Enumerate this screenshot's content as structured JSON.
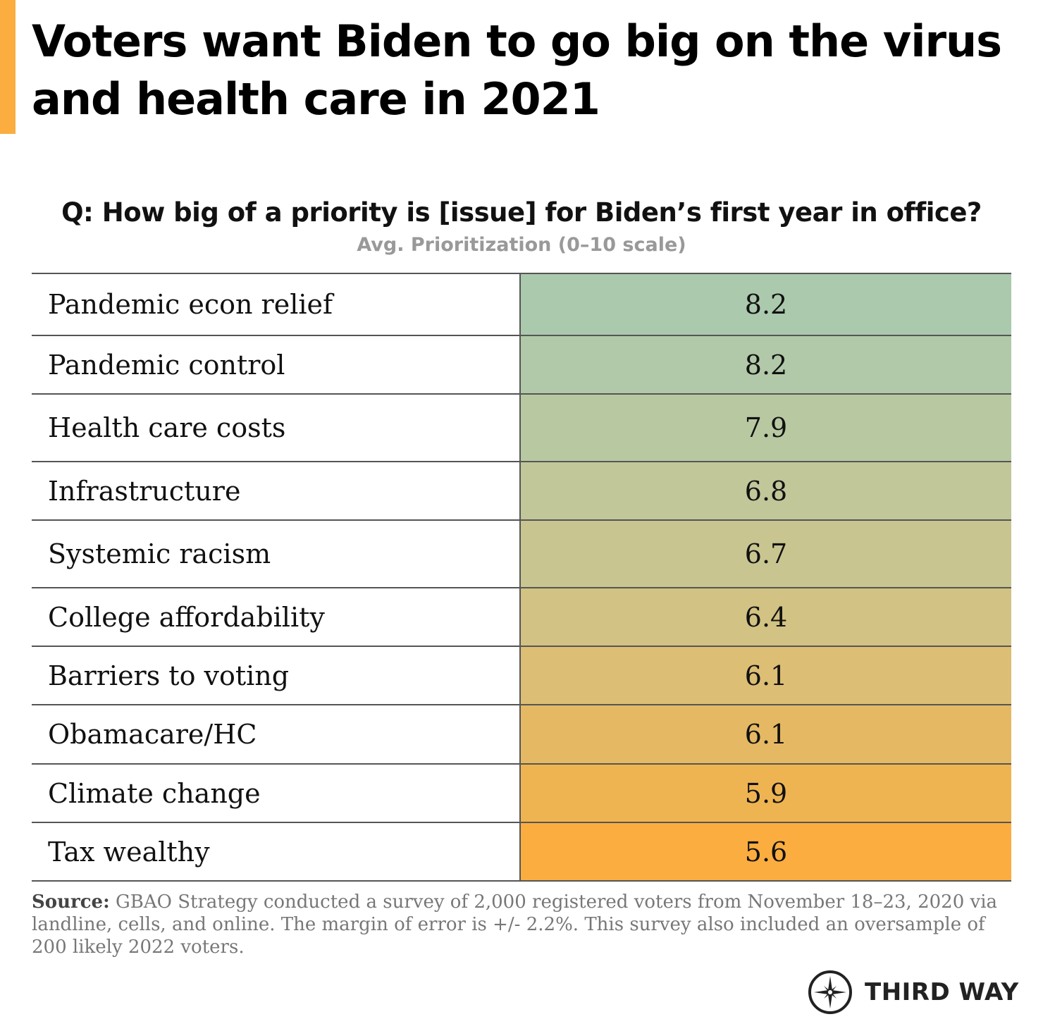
{
  "title": "Voters want Biden to go big on the virus and health care in 2021",
  "accent_color": "#fbad40",
  "chart_data": {
    "type": "table",
    "title": "Q: How big of a priority is [issue] for Biden’s first year in office?",
    "subtitle": "Avg. Prioritization (0–10 scale)",
    "scale": [
      0,
      10
    ],
    "color_scale": {
      "high": "#abc9ad",
      "low": "#fbad40"
    },
    "rows": [
      {
        "label": "Pandemic econ relief",
        "value": "8.2",
        "color": "#abc9ad"
      },
      {
        "label": "Pandemic control",
        "value": "8.2",
        "color": "#b1c9a8"
      },
      {
        "label": "Health care costs",
        "value": "7.9",
        "color": "#b8c9a2"
      },
      {
        "label": "Infrastructure",
        "value": "6.8",
        "color": "#c1c799"
      },
      {
        "label": "Systemic racism",
        "value": "6.7",
        "color": "#c9c591"
      },
      {
        "label": "College affordability",
        "value": "6.4",
        "color": "#d2c283"
      },
      {
        "label": "Barriers to voting",
        "value": "6.1",
        "color": "#dcbe74"
      },
      {
        "label": "Obamacare/HC",
        "value": "6.1",
        "color": "#e5b963"
      },
      {
        "label": "Climate change",
        "value": "5.9",
        "color": "#efb452"
      },
      {
        "label": "Tax wealthy",
        "value": "5.6",
        "color": "#fbad40"
      }
    ]
  },
  "source": {
    "label": "Source:",
    "text": "GBAO Strategy conducted a survey of 2,000 registered voters from November 18–23, 2020 via landline, cells, and online. The margin of error is +/- 2.2%. This survey also included an oversample of 200 likely 2022 voters."
  },
  "logo": {
    "text": "THIRD WAY",
    "icon": "compass-star-icon"
  }
}
